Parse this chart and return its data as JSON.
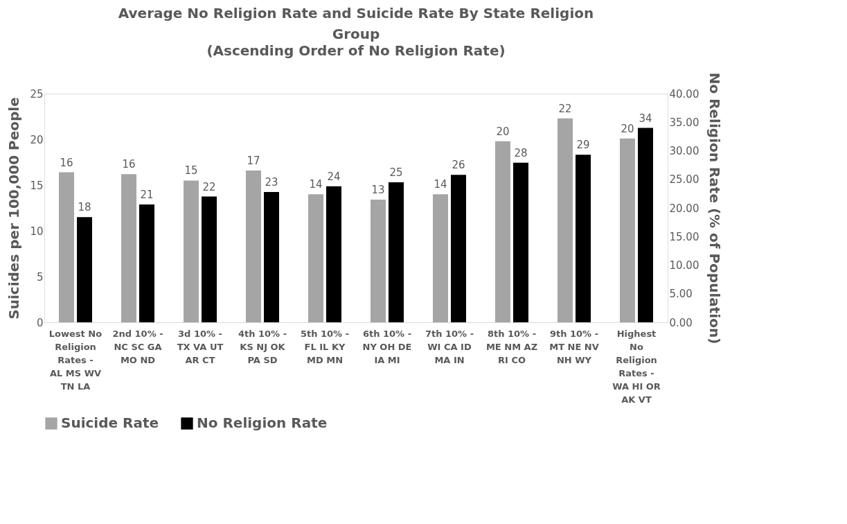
{
  "chart_data": {
    "type": "bar",
    "title": "Average No Religion Rate and Suicide Rate By State Religion Group",
    "subtitle": "(Ascending Order of No Religion Rate)",
    "categories": [
      "Lowest No Religion Rates - AL MS WV TN LA",
      "2nd 10% - NC SC GA MO ND",
      "3d 10% - TX VA UT AR CT",
      "4th 10% - KS NJ OK PA SD",
      "5th 10% - FL IL KY MD MN",
      "6th 10% - NY OH DE IA MI",
      "7th 10% - WI CA ID MA IN",
      "8th 10% - ME NM AZ RI CO",
      "9th 10% - MT NE NV NH WY",
      "Highest No Religion Rates - WA HI OR AK VT"
    ],
    "series": [
      {
        "name": "Suicide Rate",
        "color": "#a5a5a5",
        "values": [
          16.4,
          16.2,
          15.5,
          16.6,
          14.0,
          13.4,
          14.0,
          19.8,
          22.3,
          20.1
        ],
        "value_labels": [
          "16",
          "16",
          "15",
          "17",
          "14",
          "13",
          "14",
          "20",
          "22",
          "20"
        ]
      },
      {
        "name": "No Religion Rate",
        "color": "#000000",
        "axis": "y2",
        "values": [
          18.4,
          20.6,
          22.0,
          22.8,
          23.8,
          24.5,
          25.8,
          27.9,
          29.3,
          34.0
        ],
        "value_labels": [
          "18",
          "21",
          "22",
          "23",
          "24",
          "25",
          "26",
          "28",
          "29",
          "34"
        ]
      }
    ],
    "ylabel": "Suicides per 100,000 People",
    "y2label": "No Religion Rate (% of Population)",
    "ylim": [
      0,
      25
    ],
    "yticks": [
      0,
      5,
      10,
      15,
      20,
      25
    ],
    "y2lim": [
      0,
      40
    ],
    "y2ticks": [
      {
        "value": 0,
        "label": "0.00"
      },
      {
        "value": 5,
        "label": "5.00"
      },
      {
        "value": 10,
        "label": "10.00"
      },
      {
        "value": 15,
        "label": "15.00"
      },
      {
        "value": 20,
        "label": "20.00"
      },
      {
        "value": 25,
        "label": "25.00"
      },
      {
        "value": 30,
        "label": "30.00"
      },
      {
        "value": 35,
        "label": "35.00"
      },
      {
        "value": 40,
        "label": "40.00"
      }
    ],
    "grid": false,
    "legend": "bottom"
  }
}
